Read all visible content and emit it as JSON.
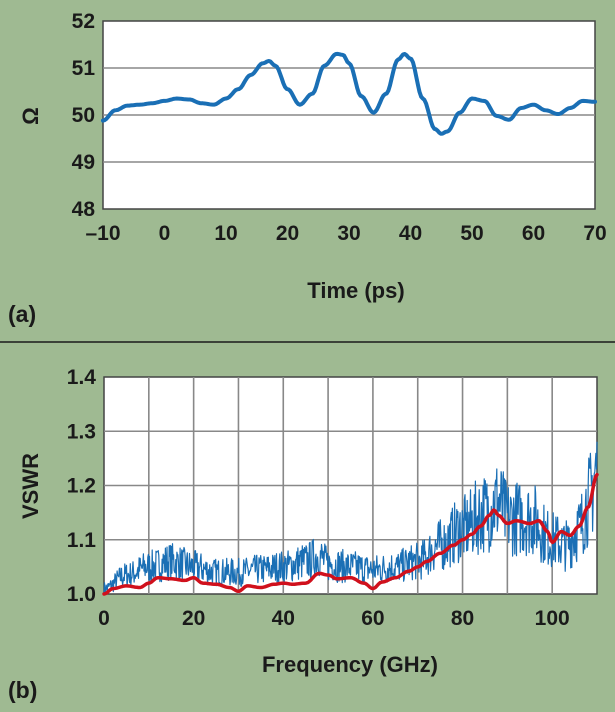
{
  "chart_data": [
    {
      "panel_label": "(a)",
      "type": "line",
      "xlabel": "Time (ps)",
      "ylabel": "Ω",
      "xlim": [
        -10,
        70
      ],
      "ylim": [
        48,
        52
      ],
      "xticks": [
        -10,
        0,
        10,
        20,
        30,
        40,
        50,
        60,
        70
      ],
      "xtick_labels": [
        "–10",
        "0",
        "10",
        "20",
        "30",
        "40",
        "50",
        "60",
        "70"
      ],
      "yticks": [
        48,
        49,
        50,
        51,
        52
      ],
      "ytick_labels": [
        "48",
        "49",
        "50",
        "51",
        "52"
      ],
      "grid": "horizontal",
      "line_color": "#1a6fb5",
      "series": [
        {
          "x": [
            -10,
            -8,
            -6,
            -4,
            -2,
            0,
            2,
            4,
            6,
            8,
            10,
            12,
            14,
            16,
            17,
            18,
            20,
            22,
            24,
            26,
            28,
            29,
            30,
            32,
            34,
            36,
            38,
            39,
            40,
            42,
            44,
            45,
            46,
            48,
            50,
            52,
            54,
            56,
            58,
            60,
            62,
            64,
            66,
            68,
            70
          ],
          "y": [
            49.88,
            50.1,
            50.2,
            50.22,
            50.25,
            50.3,
            50.35,
            50.33,
            50.25,
            50.22,
            50.35,
            50.55,
            50.85,
            51.1,
            51.15,
            51.05,
            50.55,
            50.22,
            50.45,
            51.05,
            51.3,
            51.28,
            51.1,
            50.4,
            50.05,
            50.45,
            51.18,
            51.3,
            51.2,
            50.35,
            49.7,
            49.6,
            49.65,
            50.05,
            50.35,
            50.3,
            49.98,
            49.9,
            50.15,
            50.22,
            50.1,
            50.02,
            50.15,
            50.3,
            50.28
          ]
        }
      ]
    },
    {
      "panel_label": "(b)",
      "type": "line",
      "xlabel": "Frequency (GHz)",
      "ylabel": "VSWR",
      "xlim": [
        0,
        110
      ],
      "ylim": [
        1.0,
        1.4
      ],
      "xticks": [
        0,
        20,
        40,
        60,
        80,
        100
      ],
      "xtick_labels": [
        "0",
        "20",
        "40",
        "60",
        "80",
        "100"
      ],
      "yticks": [
        1.0,
        1.1,
        1.2,
        1.3,
        1.4
      ],
      "ytick_labels": [
        "1.0",
        "1.1",
        "1.2",
        "1.3",
        "1.4"
      ],
      "grid": "both",
      "series": [
        {
          "color": "#1a6fb5",
          "noisy": true,
          "x": [
            0,
            5,
            10,
            15,
            20,
            25,
            30,
            35,
            40,
            45,
            48,
            50,
            55,
            60,
            65,
            70,
            75,
            80,
            85,
            88,
            90,
            95,
            100,
            103,
            106,
            108,
            110
          ],
          "y": [
            1.01,
            1.035,
            1.05,
            1.06,
            1.05,
            1.04,
            1.04,
            1.045,
            1.05,
            1.06,
            1.07,
            1.055,
            1.05,
            1.045,
            1.05,
            1.06,
            1.09,
            1.12,
            1.15,
            1.17,
            1.14,
            1.14,
            1.1,
            1.09,
            1.12,
            1.17,
            1.23
          ]
        },
        {
          "color": "#d0101c",
          "noisy": false,
          "x": [
            0,
            2,
            5,
            8,
            10,
            12,
            15,
            18,
            20,
            22,
            25,
            28,
            30,
            32,
            35,
            38,
            40,
            42,
            45,
            48,
            50,
            52,
            55,
            58,
            60,
            62,
            65,
            68,
            70,
            72,
            75,
            78,
            80,
            82,
            84,
            86,
            87,
            88,
            90,
            92,
            95,
            97,
            99,
            100,
            102,
            104,
            106,
            108,
            110
          ],
          "y": [
            1.0,
            1.01,
            1.015,
            1.012,
            1.02,
            1.03,
            1.028,
            1.025,
            1.03,
            1.02,
            1.018,
            1.012,
            1.005,
            1.015,
            1.012,
            1.018,
            1.02,
            1.018,
            1.02,
            1.038,
            1.035,
            1.028,
            1.03,
            1.02,
            1.01,
            1.022,
            1.03,
            1.042,
            1.05,
            1.06,
            1.075,
            1.09,
            1.1,
            1.11,
            1.125,
            1.145,
            1.155,
            1.145,
            1.13,
            1.135,
            1.13,
            1.135,
            1.115,
            1.095,
            1.115,
            1.108,
            1.125,
            1.16,
            1.22
          ]
        }
      ]
    }
  ]
}
